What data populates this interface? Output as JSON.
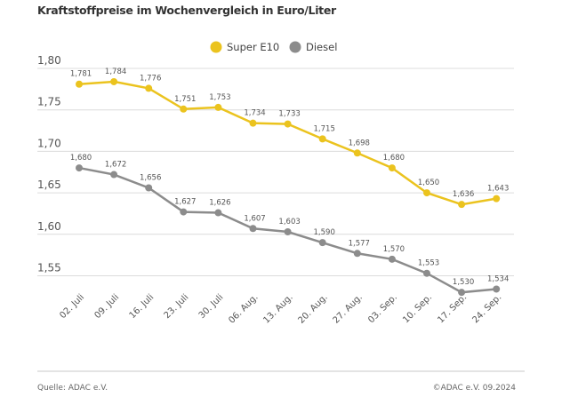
{
  "chart_data": {
    "type": "line",
    "title": "Kraftstoffpreise im Wochenvergleich in Euro/Liter",
    "categories": [
      "02. Juli",
      "09. Juli",
      "16. Juli",
      "23. Juli",
      "30. Juli",
      "06. Aug.",
      "13. Aug.",
      "20. Aug.",
      "27. Aug.",
      "03. Sep.",
      "10. Sep.",
      "17. Sep.",
      "24. Sep."
    ],
    "series": [
      {
        "name": "Super E10",
        "color": "#ebc31e",
        "values": [
          1.781,
          1.784,
          1.776,
          1.751,
          1.753,
          1.734,
          1.733,
          1.715,
          1.698,
          1.68,
          1.65,
          1.636,
          1.643
        ],
        "labels": [
          "1,781",
          "1,784",
          "1,776",
          "1,751",
          "1,753",
          "1,734",
          "1,733",
          "1,715",
          "1,698",
          "1,680",
          "1,650",
          "1,636",
          "1,643"
        ]
      },
      {
        "name": "Diesel",
        "color": "#8c8c8c",
        "values": [
          1.68,
          1.672,
          1.656,
          1.627,
          1.626,
          1.607,
          1.603,
          1.59,
          1.577,
          1.57,
          1.553,
          1.53,
          1.534
        ],
        "labels": [
          "1,680",
          "1,672",
          "1,656",
          "1,627",
          "1,626",
          "1,607",
          "1,603",
          "1,590",
          "1,577",
          "1,570",
          "1,553",
          "1,530",
          "1,534"
        ]
      }
    ],
    "yticks": [
      1.8,
      1.75,
      1.7,
      1.65,
      1.6,
      1.55
    ],
    "ytick_labels": [
      "1,80",
      "1,75",
      "1,70",
      "1,65",
      "1,60",
      "1,55"
    ],
    "ylim": [
      1.52,
      1.8
    ],
    "grid": true,
    "legend_position": "top-right",
    "xlabel": "",
    "ylabel": ""
  },
  "footer": {
    "source": "Quelle: ADAC e.V.",
    "copyright": "©ADAC e.V. 09.2024"
  }
}
